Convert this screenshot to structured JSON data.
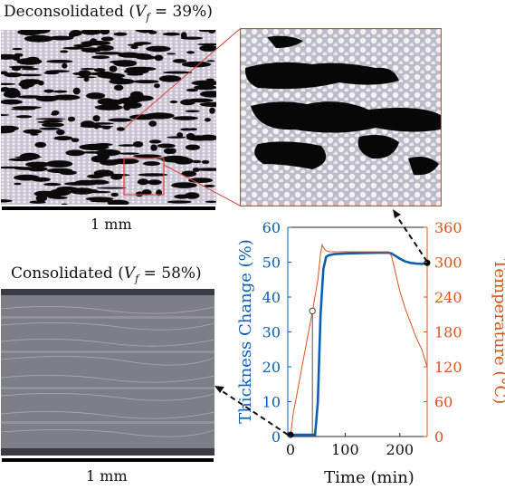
{
  "top_title": {
    "prefix": "Deconsolidated (",
    "var": "V",
    "sub": "f",
    "suffix": " = 39%)"
  },
  "bottom_title": {
    "prefix": "Consolidated (",
    "var": "V",
    "sub": "f",
    "suffix": " = 58%)"
  },
  "scale_top": "1 mm",
  "scale_bottom": "1 mm",
  "chart_data": {
    "type": "line",
    "xlabel": "Time (min)",
    "ylabel_left": "Thickness Change (%)",
    "ylabel_right": "Temperature (°C)",
    "xlim": [
      -5,
      250
    ],
    "ylim_left": [
      0,
      60
    ],
    "ylim_right": [
      0,
      360
    ],
    "x_ticks": [
      0,
      100,
      200
    ],
    "y_ticks_left": [
      0,
      10,
      20,
      30,
      40,
      50,
      60
    ],
    "y_ticks_right": [
      0,
      60,
      120,
      180,
      240,
      300,
      360
    ],
    "colors": {
      "left": "#0b5fb0",
      "right": "#d95319"
    },
    "series": [
      {
        "axis": "left",
        "x": [
          0,
          10,
          20,
          30,
          40,
          45,
          50,
          52,
          55,
          60,
          65,
          70,
          80,
          100,
          130,
          160,
          180,
          185,
          190,
          200,
          210,
          220,
          230,
          240,
          250
        ],
        "y": [
          0.5,
          0.5,
          0.5,
          0.5,
          0.5,
          0.5,
          10,
          20,
          35,
          48,
          51.5,
          52,
          52.3,
          52.5,
          52.6,
          52.7,
          52.7,
          52.5,
          52,
          51,
          50.2,
          49.8,
          49.6,
          49.5,
          49.8
        ]
      },
      {
        "axis": "right",
        "x": [
          0,
          5,
          10,
          20,
          30,
          40,
          50,
          55,
          58,
          60,
          65,
          70,
          100,
          150,
          180,
          185,
          190,
          200,
          210,
          220,
          230,
          240,
          250
        ],
        "y": [
          0,
          40,
          65,
          115,
          165,
          215,
          270,
          315,
          330,
          325,
          320,
          318,
          318,
          318,
          318,
          310,
          290,
          250,
          220,
          195,
          170,
          150,
          120
        ]
      },
      {
        "axis": "left",
        "x": [
          40,
          40
        ],
        "y": [
          0,
          36
        ]
      }
    ],
    "markers": [
      {
        "x": 0,
        "y": 0.5
      },
      {
        "x": 250,
        "y": 49.8
      }
    ],
    "open_marker": {
      "x": 40,
      "y": 36
    }
  }
}
